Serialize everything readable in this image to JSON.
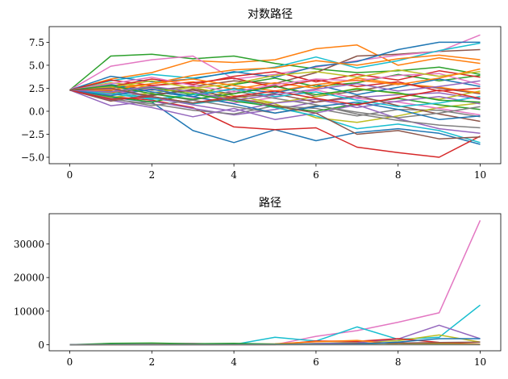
{
  "chart_data": [
    {
      "type": "line",
      "title": "对数路径",
      "xlim": [
        -0.5,
        10.5
      ],
      "ylim": [
        -5.7,
        9.2
      ],
      "xticks": [
        0,
        2,
        4,
        6,
        8,
        10
      ],
      "xtick_labels": [
        "0",
        "2",
        "4",
        "6",
        "8",
        "10"
      ],
      "yticks": [
        -5.0,
        -2.5,
        0.0,
        2.5,
        5.0,
        7.5
      ],
      "ytick_labels": [
        "−5.0",
        "−2.5",
        "0.0",
        "2.5",
        "5.0",
        "7.5"
      ],
      "x": [
        0,
        1,
        2,
        3,
        4,
        5,
        6,
        7,
        8,
        9,
        10
      ],
      "series": [
        {
          "color": "#1f77b4",
          "values": [
            2.3,
            1.5,
            1.0,
            -2.1,
            -3.4,
            -2.0,
            -3.2,
            -2.3,
            -1.9,
            -2.4,
            -3.6
          ]
        },
        {
          "color": "#ff7f0e",
          "values": [
            2.3,
            3.5,
            4.2,
            5.5,
            5.3,
            5.6,
            6.8,
            7.2,
            5.0,
            5.8,
            5.2
          ]
        },
        {
          "color": "#2ca02c",
          "values": [
            2.3,
            6.0,
            6.2,
            5.7,
            6.0,
            5.2,
            4.6,
            4.2,
            4.4,
            4.8,
            4.0
          ]
        },
        {
          "color": "#d62728",
          "values": [
            2.3,
            1.6,
            1.2,
            0.4,
            -1.7,
            -2.0,
            -1.8,
            -3.9,
            -4.5,
            -5.0,
            -2.7
          ]
        },
        {
          "color": "#9467bd",
          "values": [
            2.3,
            0.6,
            1.1,
            0.3,
            -0.4,
            0.2,
            1.0,
            1.5,
            1.8,
            2.0,
            1.3
          ]
        },
        {
          "color": "#8c564b",
          "values": [
            2.3,
            2.9,
            2.3,
            2.7,
            3.3,
            3.0,
            4.2,
            6.0,
            6.2,
            6.5,
            6.7
          ]
        },
        {
          "color": "#e377c2",
          "values": [
            2.3,
            4.9,
            5.6,
            6.0,
            3.5,
            4.0,
            4.8,
            5.5,
            6.1,
            6.5,
            8.3
          ]
        },
        {
          "color": "#7f7f7f",
          "values": [
            2.3,
            1.3,
            0.8,
            0.1,
            -0.3,
            0.6,
            0.3,
            -0.5,
            0.2,
            0.1,
            -0.6
          ]
        },
        {
          "color": "#bcbd22",
          "values": [
            2.3,
            3.1,
            2.6,
            2.0,
            1.4,
            0.8,
            -0.7,
            -1.2,
            -0.5,
            0.4,
            0.9
          ]
        },
        {
          "color": "#17becf",
          "values": [
            2.3,
            3.3,
            4.0,
            3.6,
            4.2,
            4.8,
            5.9,
            4.7,
            5.5,
            6.6,
            7.4
          ]
        },
        {
          "color": "#1f77b4",
          "values": [
            2.3,
            3.8,
            3.2,
            3.5,
            4.3,
            3.7,
            4.9,
            5.4,
            6.7,
            7.5,
            7.5
          ]
        },
        {
          "color": "#ff7f0e",
          "values": [
            2.3,
            2.5,
            3.0,
            3.9,
            4.5,
            4.7,
            5.5,
            5.0,
            5.7,
            6.1,
            5.6
          ]
        },
        {
          "color": "#2ca02c",
          "values": [
            2.3,
            1.9,
            2.6,
            1.8,
            2.9,
            3.6,
            2.7,
            3.1,
            4.0,
            3.3,
            3.9
          ]
        },
        {
          "color": "#d62728",
          "values": [
            2.3,
            2.7,
            3.5,
            2.9,
            3.8,
            4.3,
            3.2,
            4.0,
            3.4,
            4.4,
            3.7
          ]
        },
        {
          "color": "#9467bd",
          "values": [
            2.3,
            1.2,
            0.4,
            -0.6,
            0.3,
            -0.9,
            -0.2,
            0.7,
            -0.8,
            -1.9,
            -2.4
          ]
        },
        {
          "color": "#8c564b",
          "values": [
            2.3,
            2.2,
            1.7,
            2.4,
            1.9,
            2.8,
            1.6,
            2.2,
            3.0,
            2.5,
            1.9
          ]
        },
        {
          "color": "#e377c2",
          "values": [
            2.3,
            1.8,
            2.5,
            1.5,
            0.9,
            1.5,
            2.3,
            1.4,
            1.0,
            0.3,
            -0.4
          ]
        },
        {
          "color": "#7f7f7f",
          "values": [
            2.3,
            2.7,
            1.9,
            1.2,
            2.2,
            1.4,
            0.7,
            -0.3,
            -1.0,
            -1.5,
            -1.8
          ]
        },
        {
          "color": "#bcbd22",
          "values": [
            2.3,
            1.5,
            2.0,
            2.6,
            1.7,
            0.9,
            1.6,
            2.5,
            1.9,
            1.3,
            2.2
          ]
        },
        {
          "color": "#17becf",
          "values": [
            2.3,
            2.1,
            1.4,
            0.8,
            1.3,
            0.4,
            -0.5,
            -1.9,
            -1.4,
            -2.1,
            -3.4
          ]
        },
        {
          "color": "#1f77b4",
          "values": [
            2.3,
            2.9,
            2.1,
            1.6,
            2.5,
            2.0,
            2.9,
            1.8,
            2.6,
            3.5,
            2.7
          ]
        },
        {
          "color": "#ff7f0e",
          "values": [
            2.3,
            2.0,
            2.8,
            3.2,
            2.4,
            3.1,
            2.5,
            3.6,
            3.0,
            2.6,
            2.0
          ]
        },
        {
          "color": "#2ca02c",
          "values": [
            2.3,
            1.6,
            1.0,
            1.9,
            1.1,
            0.5,
            0.0,
            0.8,
            1.4,
            0.7,
            0.2
          ]
        },
        {
          "color": "#d62728",
          "values": [
            2.3,
            3.4,
            2.8,
            3.1,
            3.6,
            2.6,
            3.4,
            2.7,
            3.2,
            2.2,
            2.5
          ]
        },
        {
          "color": "#9467bd",
          "values": [
            2.3,
            2.4,
            1.5,
            0.7,
            0.0,
            0.9,
            1.3,
            0.4,
            1.1,
            1.6,
            0.8
          ]
        },
        {
          "color": "#8c564b",
          "values": [
            2.3,
            1.1,
            1.8,
            2.3,
            1.5,
            1.9,
            1.0,
            1.7,
            0.6,
            -0.3,
            -1.1
          ]
        },
        {
          "color": "#e377c2",
          "values": [
            2.3,
            3.0,
            3.7,
            2.8,
            2.1,
            2.9,
            3.5,
            3.3,
            3.9,
            4.1,
            2.9
          ]
        },
        {
          "color": "#7f7f7f",
          "values": [
            2.3,
            1.4,
            0.6,
            1.2,
            0.5,
            -0.2,
            0.6,
            -0.1,
            -0.7,
            -0.2,
            0.5
          ]
        },
        {
          "color": "#bcbd22",
          "values": [
            2.3,
            2.6,
            3.3,
            2.5,
            3.0,
            3.9,
            4.3,
            3.7,
            4.5,
            3.8,
            4.3
          ]
        },
        {
          "color": "#17becf",
          "values": [
            2.3,
            1.9,
            1.3,
            1.8,
            2.4,
            1.6,
            2.1,
            1.2,
            0.5,
            0.9,
            1.6
          ]
        },
        {
          "color": "#1f77b4",
          "values": [
            2.3,
            1.7,
            2.4,
            1.6,
            0.8,
            -0.2,
            0.5,
            1.0,
            0.2,
            -0.9,
            -0.5
          ]
        },
        {
          "color": "#ff7f0e",
          "values": [
            2.3,
            2.3,
            3.0,
            3.5,
            2.8,
            2.2,
            2.9,
            3.4,
            2.9,
            3.6,
            4.6
          ]
        },
        {
          "color": "#2ca02c",
          "values": [
            2.3,
            2.8,
            1.9,
            1.3,
            1.9,
            2.7,
            1.8,
            2.4,
            2.0,
            1.2,
            1.0
          ]
        },
        {
          "color": "#d62728",
          "values": [
            2.3,
            1.3,
            1.6,
            0.9,
            1.6,
            2.2,
            1.4,
            0.7,
            1.5,
            2.3,
            1.4
          ]
        },
        {
          "color": "#9467bd",
          "values": [
            2.3,
            2.1,
            2.7,
            2.1,
            1.2,
            1.8,
            2.4,
            3.0,
            2.2,
            2.7,
            3.3
          ]
        },
        {
          "color": "#8c564b",
          "values": [
            2.3,
            2.5,
            1.6,
            0.9,
            1.4,
            0.6,
            -0.2,
            -2.5,
            -2.1,
            -3.0,
            -2.8
          ]
        }
      ]
    },
    {
      "type": "line",
      "title": "路径",
      "xlim": [
        -0.5,
        10.5
      ],
      "ylim": [
        -1800,
        39000
      ],
      "xticks": [
        0,
        2,
        4,
        6,
        8,
        10
      ],
      "xtick_labels": [
        "0",
        "2",
        "4",
        "6",
        "8",
        "10"
      ],
      "yticks": [
        0,
        10000,
        20000,
        30000
      ],
      "ytick_labels": [
        "0",
        "10000",
        "20000",
        "30000"
      ],
      "x": [
        0,
        1,
        2,
        3,
        4,
        5,
        6,
        7,
        8,
        9,
        10
      ],
      "series": [
        {
          "color": "#e377c2",
          "values": [
            10,
            130,
            280,
            400,
            30,
            60,
            2500,
            4200,
            6700,
            9500,
            37000
          ]
        },
        {
          "color": "#17becf",
          "values": [
            10,
            30,
            60,
            40,
            70,
            2200,
            1100,
            5300,
            1600,
            2200,
            11800
          ]
        },
        {
          "color": "#bcbd22",
          "values": [
            10,
            25,
            50,
            30,
            40,
            90,
            400,
            800,
            1200,
            2900,
            800
          ]
        },
        {
          "color": "#9467bd",
          "values": [
            10,
            20,
            30,
            20,
            30,
            60,
            350,
            600,
            1700,
            5800,
            1800
          ]
        },
        {
          "color": "#d62728",
          "values": [
            10,
            15,
            20,
            15,
            20,
            30,
            1100,
            1000,
            1800,
            700,
            200
          ]
        },
        {
          "color": "#ff7f0e",
          "values": [
            10,
            35,
            70,
            250,
            200,
            270,
            900,
            1300,
            150,
            350,
            200
          ]
        },
        {
          "color": "#2ca02c",
          "values": [
            10,
            400,
            500,
            300,
            400,
            180,
            100,
            65,
            80,
            120,
            55
          ]
        },
        {
          "color": "#8c564b",
          "values": [
            10,
            20,
            10,
            15,
            27,
            20,
            70,
            400,
            500,
            650,
            800
          ]
        },
        {
          "color": "#1f77b4",
          "values": [
            10,
            45,
            25,
            33,
            70,
            40,
            130,
            220,
            800,
            1800,
            1800
          ]
        },
        {
          "color": "#7f7f7f",
          "values": [
            10,
            4,
            2,
            1,
            1,
            2,
            1,
            1,
            1,
            1,
            1
          ]
        }
      ]
    }
  ]
}
